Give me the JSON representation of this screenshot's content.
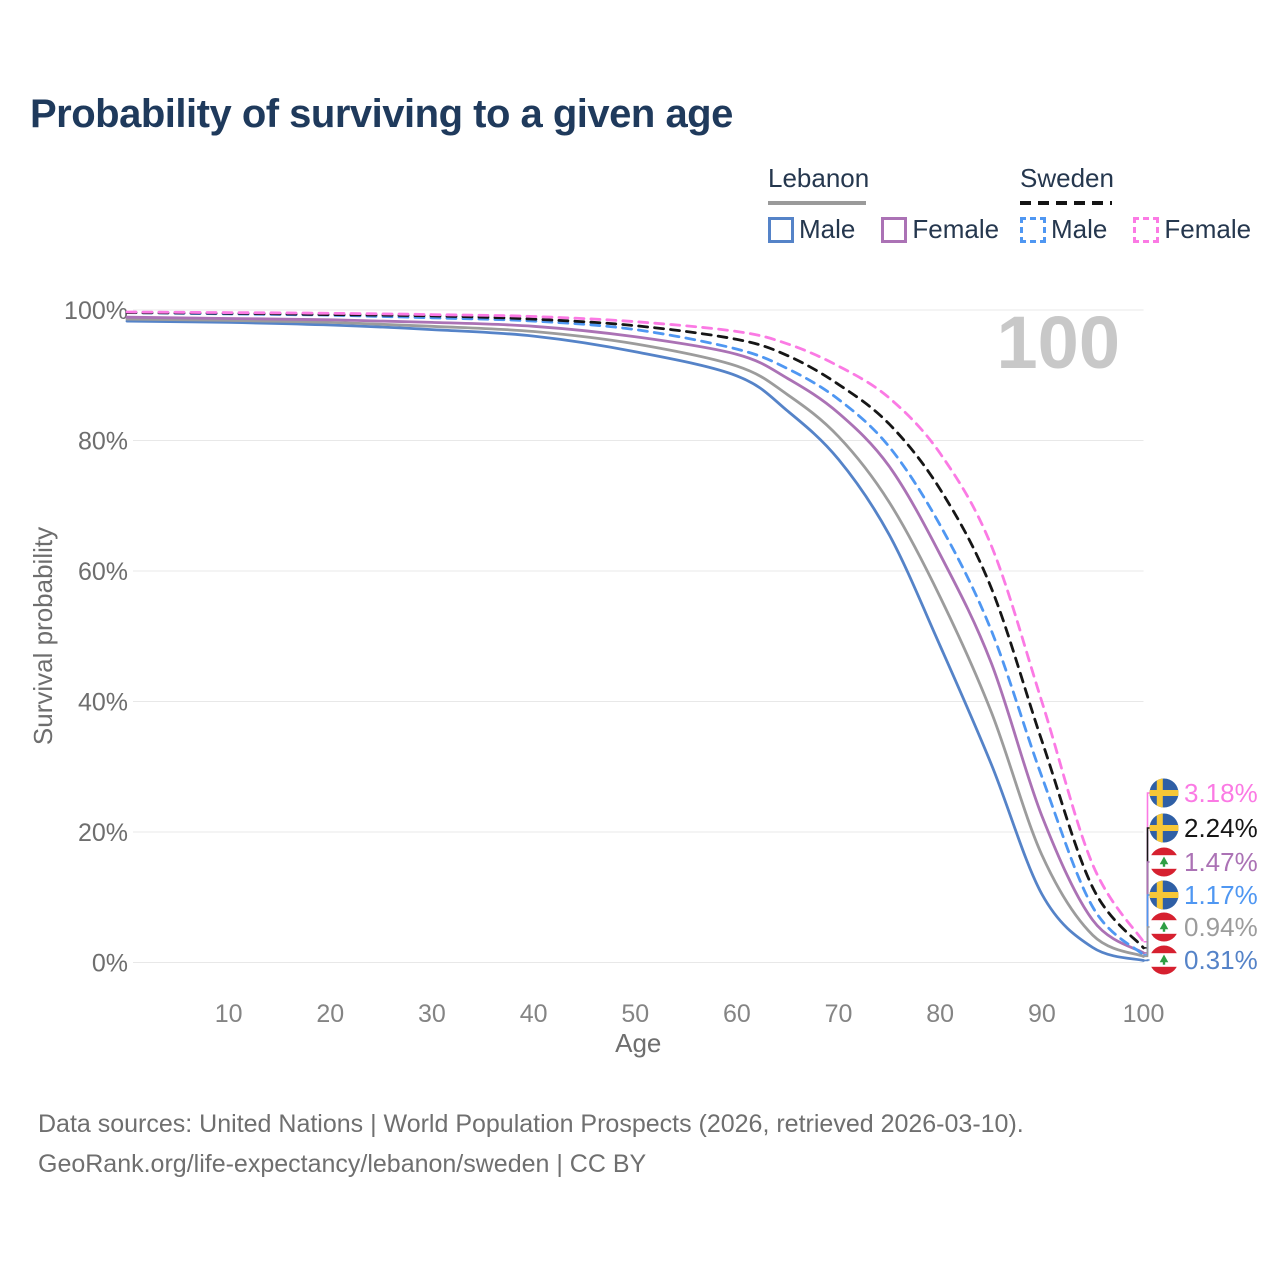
{
  "title": "Probability of surviving to a given age",
  "legend": {
    "groups": [
      {
        "label": "Lebanon",
        "line_style": "solid",
        "items": [
          {
            "label": "Male",
            "color": "#5583c8"
          },
          {
            "label": "Female",
            "color": "#ab72b5"
          }
        ]
      },
      {
        "label": "Sweden",
        "line_style": "dashed",
        "items": [
          {
            "label": "Male",
            "color": "#4f97f2"
          },
          {
            "label": "Female",
            "color": "#fb7ae4"
          }
        ]
      }
    ]
  },
  "age_indicator": "100",
  "chart_data": {
    "type": "line",
    "title": "Probability of surviving to a given age",
    "xlabel": "Age",
    "ylabel": "Survival probability",
    "xlim": [
      0,
      100
    ],
    "ylim": [
      0,
      100
    ],
    "x_ticks": [
      10,
      20,
      30,
      40,
      50,
      60,
      70,
      80,
      90,
      100
    ],
    "y_ticks": [
      0,
      20,
      40,
      60,
      80,
      100
    ],
    "y_tick_suffix": "%",
    "grid": "horizontal",
    "legend_position": "top-right",
    "x": [
      0,
      10,
      20,
      30,
      40,
      50,
      60,
      65,
      70,
      75,
      80,
      85,
      90,
      95,
      100
    ],
    "series": [
      {
        "name": "Lebanon Male",
        "country": "Lebanon",
        "sex": "male",
        "color": "#5583c8",
        "dash": false,
        "end_value_pct": 0.31,
        "values": [
          98.3,
          98.1,
          97.7,
          97.0,
          96.0,
          93.6,
          89.9,
          84.5,
          77.1,
          65.5,
          48.5,
          30.5,
          10.5,
          2.3,
          0.31
        ]
      },
      {
        "name": "Lebanon Both sexes",
        "country": "Lebanon",
        "sex": "both",
        "color": "#9c9c9c",
        "dash": false,
        "end_value_pct": 0.94,
        "values": [
          98.6,
          98.4,
          98.1,
          97.5,
          96.7,
          94.8,
          91.4,
          87.0,
          80.6,
          70.5,
          56.0,
          38.5,
          16.5,
          4.2,
          0.94
        ]
      },
      {
        "name": "Lebanon Female",
        "country": "Lebanon",
        "sex": "female",
        "color": "#ab72b5",
        "dash": false,
        "end_value_pct": 1.47,
        "values": [
          98.9,
          98.7,
          98.5,
          98.1,
          97.5,
          95.9,
          93.2,
          89.5,
          84.2,
          76.0,
          62.5,
          46.0,
          22.5,
          6.5,
          1.47
        ]
      },
      {
        "name": "Sweden Male",
        "country": "Sweden",
        "sex": "male",
        "color": "#4f97f2",
        "dash": true,
        "end_value_pct": 1.17,
        "values": [
          99.6,
          99.4,
          99.2,
          98.8,
          98.3,
          97.0,
          94.0,
          91.0,
          86.3,
          79.0,
          67.0,
          51.0,
          28.5,
          8.5,
          1.17
        ]
      },
      {
        "name": "Sweden Both sexes",
        "country": "Sweden",
        "sex": "both",
        "color": "#161616",
        "dash": true,
        "end_value_pct": 2.24,
        "values": [
          99.6,
          99.5,
          99.3,
          99.1,
          98.6,
          97.6,
          95.5,
          93.0,
          88.6,
          82.5,
          72.5,
          57.5,
          34.0,
          11.5,
          2.24
        ]
      },
      {
        "name": "Sweden Female",
        "country": "Sweden",
        "sex": "female",
        "color": "#fb7ae4",
        "dash": true,
        "end_value_pct": 3.18,
        "values": [
          99.7,
          99.6,
          99.5,
          99.3,
          99.0,
          98.2,
          96.7,
          94.8,
          91.4,
          86.5,
          78.0,
          64.0,
          40.0,
          15.0,
          3.18
        ]
      }
    ]
  },
  "end_labels": [
    {
      "value": "3.18%",
      "flag": "sweden",
      "color": "#fb7ae4"
    },
    {
      "value": "2.24%",
      "flag": "sweden",
      "color": "#161616"
    },
    {
      "value": "1.47%",
      "flag": "lebanon",
      "color": "#ab72b5"
    },
    {
      "value": "1.17%",
      "flag": "sweden",
      "color": "#4f97f2"
    },
    {
      "value": "0.94%",
      "flag": "lebanon",
      "color": "#9c9c9c"
    },
    {
      "value": "0.31%",
      "flag": "lebanon",
      "color": "#5583c8"
    }
  ],
  "footer": {
    "line1": "Data sources: United Nations | World Population Prospects (2026, retrieved 2026-03-10).",
    "line2": "GeoRank.org/life-expectancy/lebanon/sweden | CC BY"
  }
}
